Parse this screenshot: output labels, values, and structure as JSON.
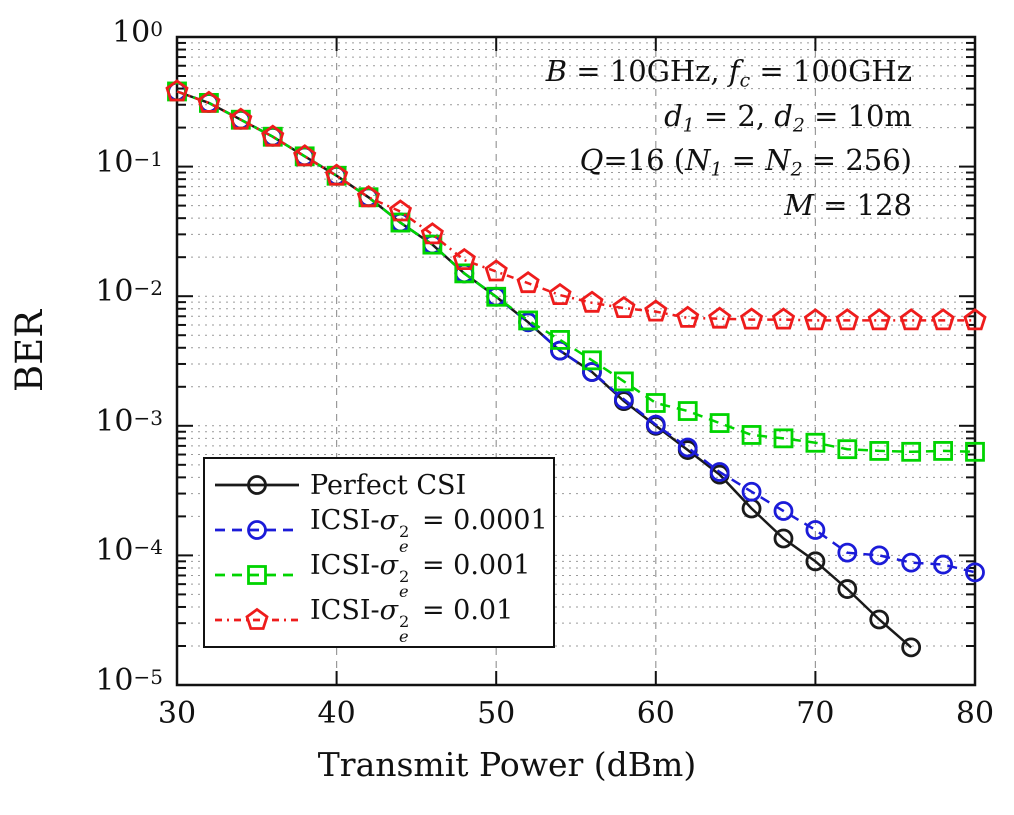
{
  "chart_data": {
    "type": "line",
    "title": "",
    "xlabel": "Transmit Power (dBm)",
    "ylabel": "BER",
    "x_range": [
      30,
      80
    ],
    "x_ticks": [
      30,
      40,
      50,
      60,
      70,
      80
    ],
    "x_grid_major": [
      40,
      50,
      60,
      70
    ],
    "y_scale": "log",
    "y_range": [
      1e-05,
      1
    ],
    "y_tick_exponents": [
      0,
      -1,
      -2,
      -3,
      -4,
      -5
    ],
    "grid": "log-minor-dotted",
    "legend_position": "bottom-left",
    "annotations": [
      [
        {
          "t": "B",
          "s": "i"
        },
        {
          "t": " = 10GHz, ",
          "s": "n"
        },
        {
          "t": "f",
          "s": "i"
        },
        {
          "t": "c",
          "s": "sub"
        },
        {
          "t": " = 100GHz",
          "s": "n"
        }
      ],
      [
        {
          "t": "d",
          "s": "i"
        },
        {
          "t": "1",
          "s": "sub"
        },
        {
          "t": " = 2, ",
          "s": "n"
        },
        {
          "t": "d",
          "s": "i"
        },
        {
          "t": "2",
          "s": "sub"
        },
        {
          "t": " = 10m",
          "s": "n"
        }
      ],
      [
        {
          "t": "Q",
          "s": "i"
        },
        {
          "t": "=16 (",
          "s": "n"
        },
        {
          "t": "N",
          "s": "i"
        },
        {
          "t": "1",
          "s": "sub"
        },
        {
          "t": " = ",
          "s": "n"
        },
        {
          "t": "N",
          "s": "i"
        },
        {
          "t": "2",
          "s": "sub"
        },
        {
          "t": " = 256)",
          "s": "n"
        }
      ],
      [
        {
          "t": "M",
          "s": "i"
        },
        {
          "t": " = 128",
          "s": "n"
        }
      ]
    ],
    "series": [
      {
        "name": "Perfect CSI",
        "label_segments": [
          {
            "t": "Perfect CSI",
            "s": "n"
          }
        ],
        "color": "#1a1a1a",
        "line_style": "solid",
        "marker": "circle",
        "x": [
          30,
          32,
          34,
          36,
          38,
          40,
          42,
          44,
          46,
          48,
          50,
          52,
          54,
          56,
          58,
          60,
          62,
          64,
          66,
          68,
          70,
          72,
          74,
          76
        ],
        "y": [
          0.38,
          0.31,
          0.23,
          0.17,
          0.12,
          0.085,
          0.058,
          0.037,
          0.025,
          0.015,
          0.0099,
          0.0063,
          0.0038,
          0.0026,
          0.00155,
          0.001,
          0.00065,
          0.00042,
          0.00023,
          0.000135,
          9e-05,
          5.5e-05,
          3.2e-05,
          1.95e-05
        ]
      },
      {
        "name": "ICSI-σe2 = 0.0001",
        "label_segments": [
          {
            "t": "ICSI-",
            "s": "n"
          },
          {
            "t": "σ",
            "s": "i"
          },
          {
            "s": "stack",
            "sup": "2",
            "sub": "e"
          },
          {
            "t": " = 0.0001",
            "s": "n"
          }
        ],
        "color": "#1b1bd8",
        "line_style": "dashed",
        "marker": "circle",
        "x": [
          30,
          32,
          34,
          36,
          38,
          40,
          42,
          44,
          46,
          48,
          50,
          52,
          54,
          56,
          58,
          60,
          62,
          64,
          66,
          68,
          70,
          72,
          74,
          76,
          78,
          80
        ],
        "y": [
          0.38,
          0.31,
          0.23,
          0.17,
          0.12,
          0.085,
          0.058,
          0.037,
          0.025,
          0.015,
          0.0099,
          0.0063,
          0.0038,
          0.0026,
          0.0016,
          0.00102,
          0.00068,
          0.00044,
          0.00031,
          0.00022,
          0.000157,
          0.000105,
          0.0001,
          8.8e-05,
          8.5e-05,
          7.4e-05
        ]
      },
      {
        "name": "ICSI-σe2 = 0.001",
        "label_segments": [
          {
            "t": "ICSI-",
            "s": "n"
          },
          {
            "t": "σ",
            "s": "i"
          },
          {
            "s": "stack",
            "sup": "2",
            "sub": "e"
          },
          {
            "t": " = 0.001",
            "s": "n"
          }
        ],
        "color": "#00d400",
        "line_style": "dashed",
        "marker": "square",
        "x": [
          30,
          32,
          34,
          36,
          38,
          40,
          42,
          44,
          46,
          48,
          50,
          52,
          54,
          56,
          58,
          60,
          62,
          64,
          66,
          68,
          70,
          72,
          74,
          76,
          78,
          80
        ],
        "y": [
          0.38,
          0.31,
          0.23,
          0.17,
          0.12,
          0.085,
          0.058,
          0.037,
          0.025,
          0.015,
          0.0099,
          0.0065,
          0.0046,
          0.0032,
          0.0022,
          0.0015,
          0.0013,
          0.00105,
          0.00085,
          0.0008,
          0.00074,
          0.00066,
          0.00064,
          0.00063,
          0.00064,
          0.00063
        ]
      },
      {
        "name": "ICSI-σe2 = 0.01",
        "label_segments": [
          {
            "t": "ICSI-",
            "s": "n"
          },
          {
            "t": "σ",
            "s": "i"
          },
          {
            "s": "stack",
            "sup": "2",
            "sub": "e"
          },
          {
            "t": " = 0.01",
            "s": "n"
          }
        ],
        "color": "#ee1c1c",
        "line_style": "dash-dot",
        "marker": "pentagon",
        "x": [
          30,
          32,
          34,
          36,
          38,
          40,
          42,
          44,
          46,
          48,
          50,
          52,
          54,
          56,
          58,
          60,
          62,
          64,
          66,
          68,
          70,
          72,
          74,
          76,
          78,
          80
        ],
        "y": [
          0.38,
          0.31,
          0.23,
          0.17,
          0.12,
          0.085,
          0.058,
          0.045,
          0.03,
          0.019,
          0.0155,
          0.0126,
          0.0102,
          0.0089,
          0.0081,
          0.0076,
          0.0068,
          0.0067,
          0.0066,
          0.0066,
          0.0065,
          0.0065,
          0.0065,
          0.0065,
          0.0065,
          0.0065
        ]
      }
    ]
  }
}
